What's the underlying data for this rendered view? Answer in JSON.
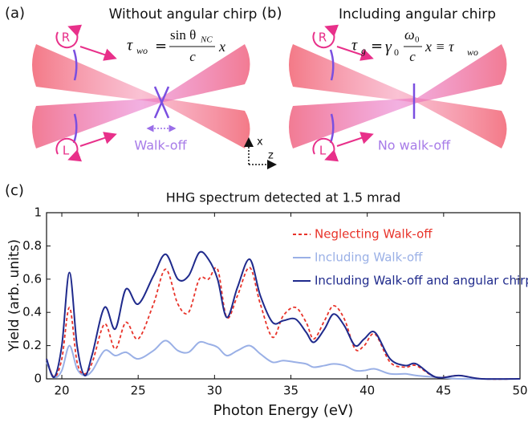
{
  "panel_a": {
    "label": "(a)",
    "title": "Without angular chirp",
    "equation": {
      "lhs": "τ",
      "lhs_sub": "wo",
      "eq": "=",
      "numerator": "sin θ",
      "numerator_sub": "NC",
      "denominator": "c",
      "rhs": "x"
    },
    "right_beam": "R",
    "left_beam": "L",
    "note": "Walk-off"
  },
  "panel_b": {
    "label": "(b)",
    "title": "Including angular chirp",
    "equation": {
      "lhs": "τ",
      "lhs_sub": "g",
      "eq": "=",
      "factor": "γ",
      "factor_sub": "0",
      "numerator": "ω",
      "numerator_sub": "0",
      "denominator": "c",
      "rhs": "x ≡ τ",
      "rhs_sub": "wo"
    },
    "right_beam": "R",
    "left_beam": "L",
    "note": "No walk-off"
  },
  "axes_icon": {
    "x": "x",
    "z": "z"
  },
  "chart_data": {
    "type": "line",
    "label": "(c)",
    "title": "HHG spectrum detected at 1.5 mrad",
    "x_label": "Photon Energy (eV)",
    "y_label": "Yield (arb. units)",
    "x": [
      19,
      19.5,
      20,
      20.5,
      21,
      21.5,
      22,
      22.8,
      23.5,
      24.2,
      25,
      26,
      26.8,
      27.6,
      28.3,
      29,
      29.6,
      30.2,
      30.8,
      31.5,
      32.3,
      33,
      33.8,
      34.5,
      35.3,
      36,
      36.5,
      37.2,
      37.8,
      38.5,
      39.2,
      39.8,
      40.5,
      41.5,
      42.5,
      43.2,
      44.5,
      46,
      47.5,
      50
    ],
    "series": [
      {
        "name": "Neglecting Walk-off",
        "color": "#e8332a",
        "linestyle": "dashed",
        "values": [
          0.12,
          0.01,
          0.12,
          0.43,
          0.1,
          0.03,
          0.1,
          0.33,
          0.18,
          0.34,
          0.24,
          0.45,
          0.66,
          0.45,
          0.4,
          0.6,
          0.6,
          0.66,
          0.37,
          0.5,
          0.67,
          0.45,
          0.25,
          0.38,
          0.43,
          0.34,
          0.24,
          0.35,
          0.44,
          0.36,
          0.18,
          0.2,
          0.27,
          0.1,
          0.07,
          0.08,
          0.01,
          0.02,
          0,
          0
        ]
      },
      {
        "name": "Including Walk-off",
        "color": "#9ab0e6",
        "linestyle": "solid",
        "values": [
          0.1,
          0.01,
          0.05,
          0.2,
          0.06,
          0.02,
          0.05,
          0.17,
          0.14,
          0.16,
          0.12,
          0.17,
          0.23,
          0.17,
          0.16,
          0.22,
          0.21,
          0.19,
          0.14,
          0.17,
          0.2,
          0.15,
          0.1,
          0.11,
          0.1,
          0.09,
          0.07,
          0.08,
          0.09,
          0.08,
          0.05,
          0.05,
          0.06,
          0.03,
          0.03,
          0.02,
          0.01,
          0,
          0,
          0
        ]
      },
      {
        "name": "Including Walk-off and angular chirp",
        "color": "#1f2a8c",
        "linestyle": "solid",
        "values": [
          0.12,
          0.01,
          0.2,
          0.64,
          0.2,
          0.02,
          0.15,
          0.43,
          0.3,
          0.54,
          0.45,
          0.62,
          0.75,
          0.6,
          0.62,
          0.76,
          0.72,
          0.6,
          0.37,
          0.55,
          0.72,
          0.5,
          0.34,
          0.35,
          0.36,
          0.28,
          0.22,
          0.3,
          0.39,
          0.32,
          0.2,
          0.24,
          0.28,
          0.12,
          0.08,
          0.09,
          0.01,
          0.02,
          0,
          0
        ]
      }
    ],
    "xlim": [
      19,
      50
    ],
    "ylim": [
      0,
      1
    ],
    "xticks": [
      20,
      25,
      30,
      35,
      40,
      45,
      50
    ],
    "yticks": [
      0,
      0.2,
      0.4,
      0.6,
      0.8,
      1
    ],
    "legend": "upper right"
  }
}
